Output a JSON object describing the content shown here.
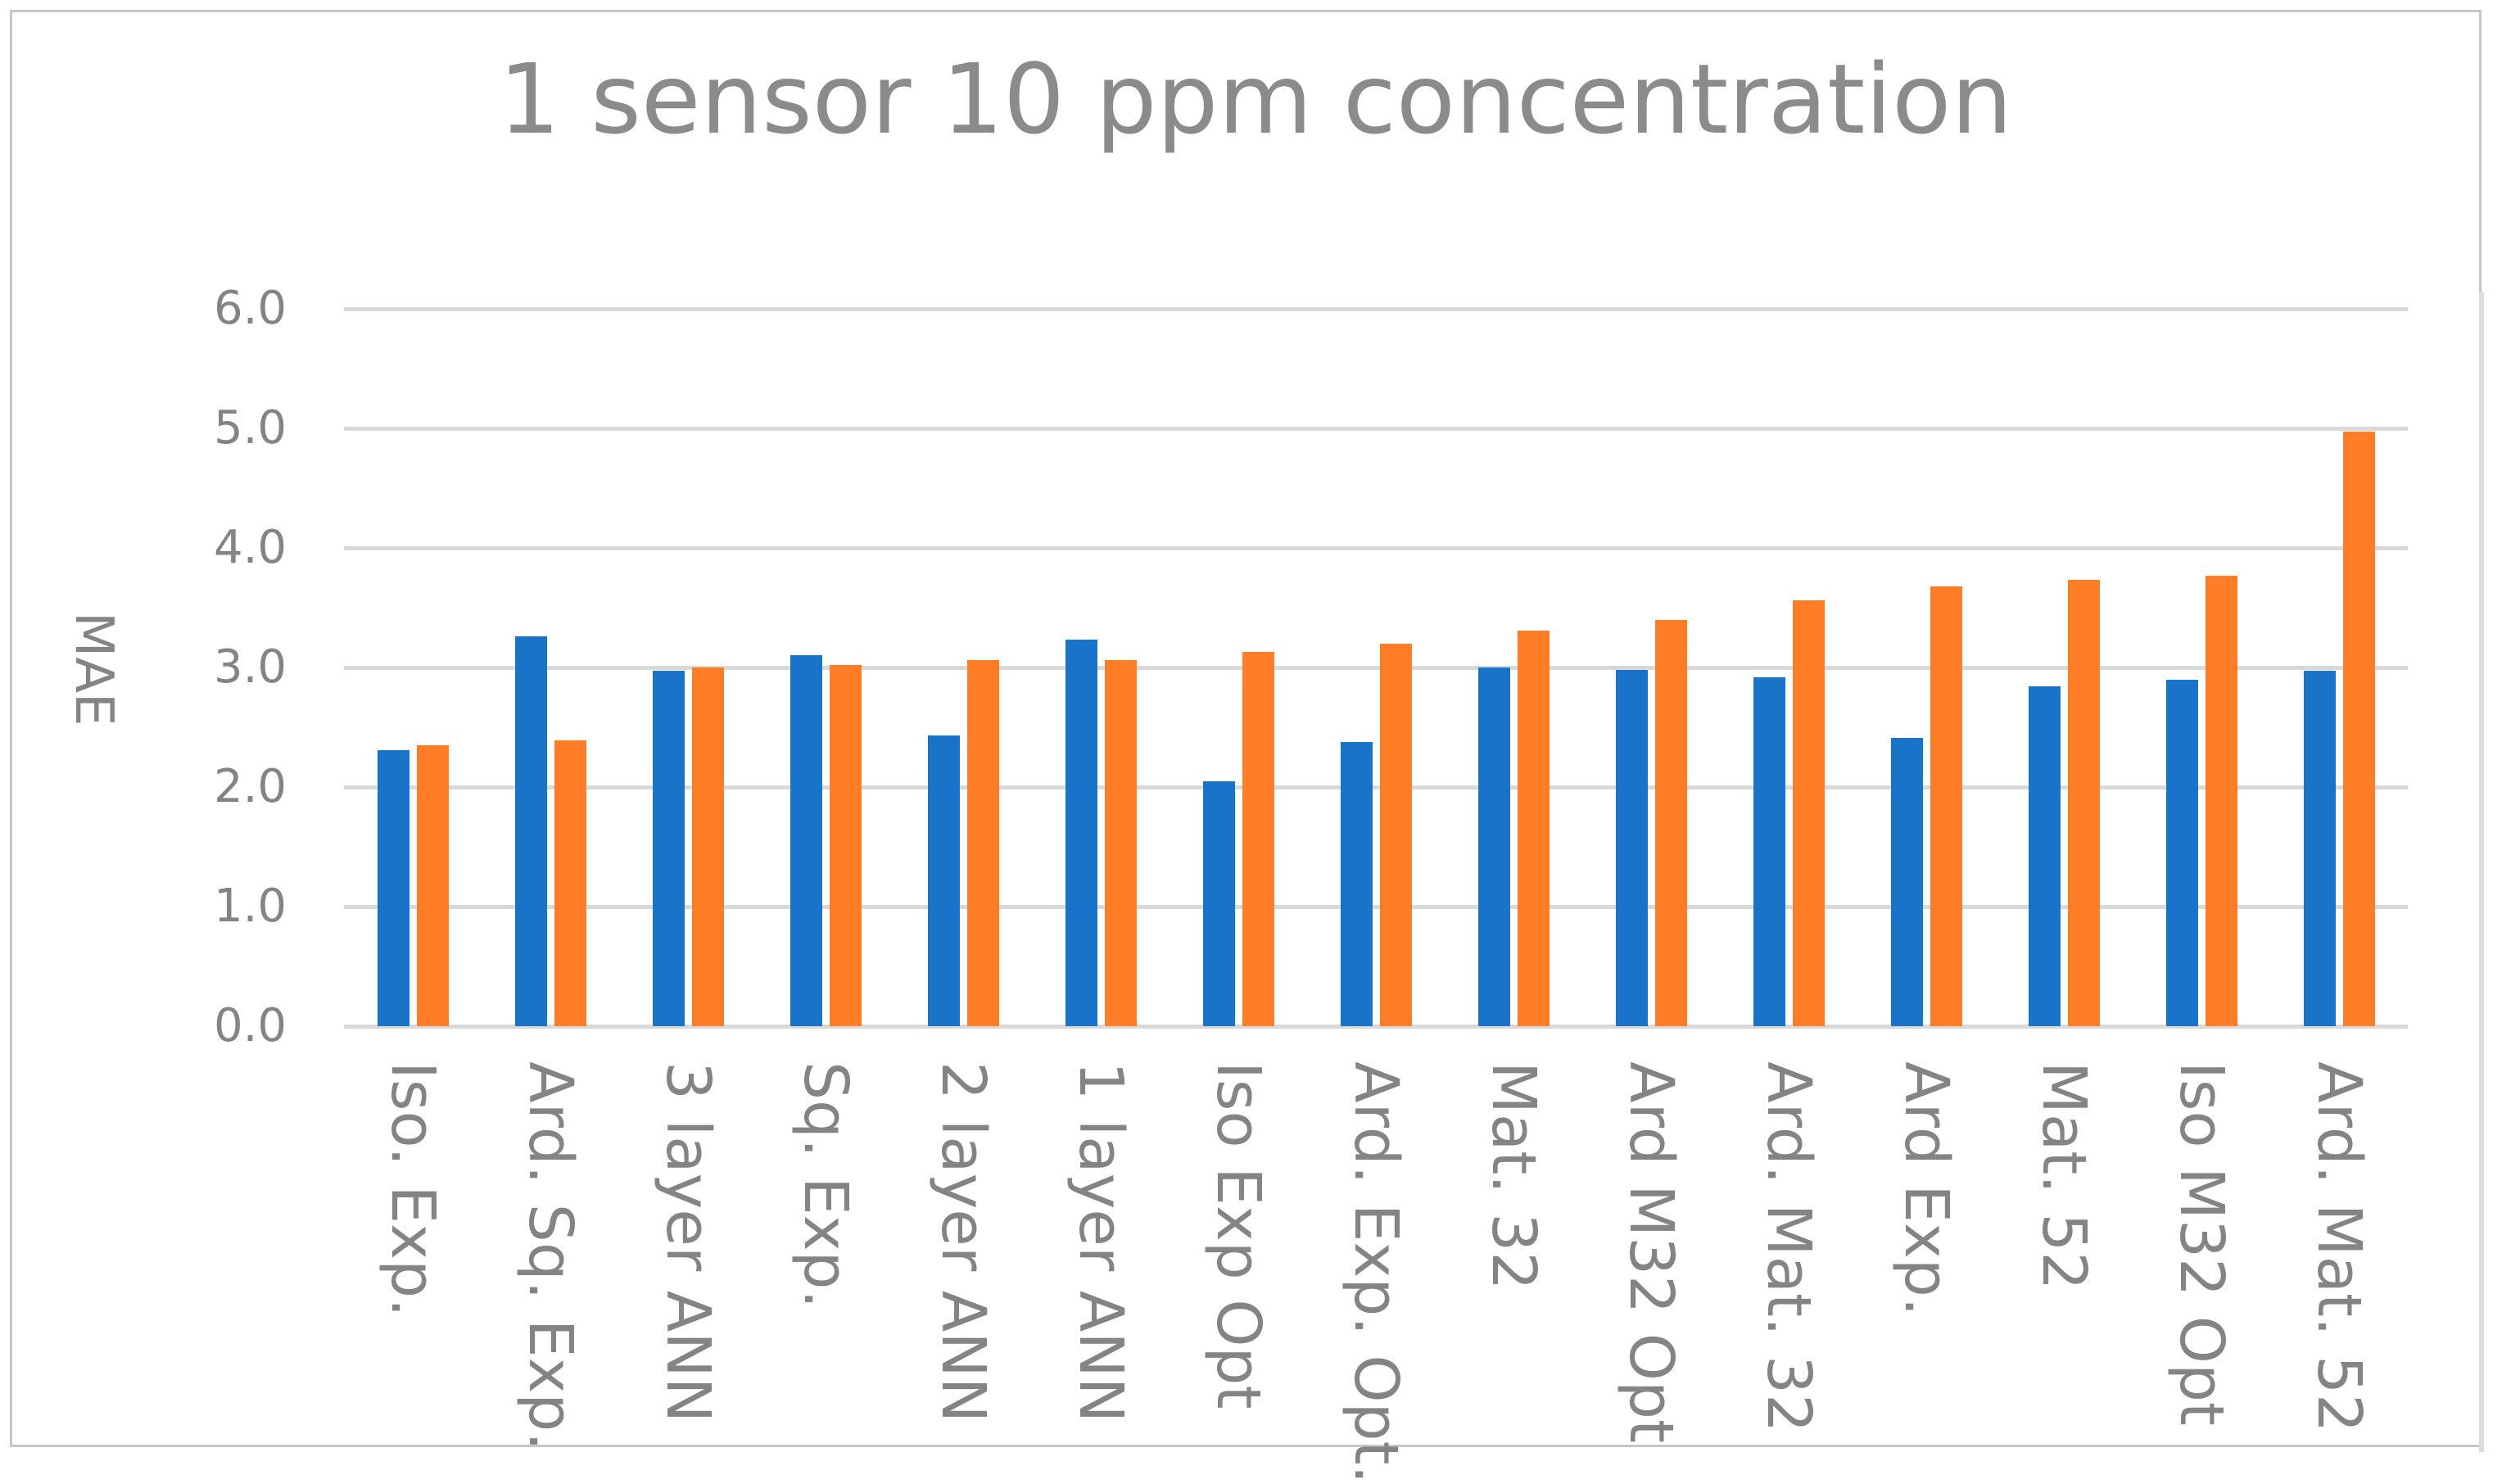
{
  "title": "1 sensor 10 ppm concentration",
  "y_axis": {
    "label": "MAE",
    "ticks": [
      "6.0",
      "5.0",
      "4.0",
      "3.0",
      "2.0",
      "1.0",
      "0.0"
    ]
  },
  "colors": {
    "series_blue": "#1973c8",
    "series_orange": "#ff7d26",
    "gridline": "#d9d9d9",
    "text_gray": "#848484",
    "frame_border": "#c6c6c6"
  },
  "chart_data": {
    "type": "bar",
    "title": "1 sensor 10 ppm concentration",
    "xlabel": "",
    "ylabel": "MAE",
    "ylim": [
      0,
      6
    ],
    "ytick_step": 1.0,
    "grid": true,
    "legend_position": "none",
    "categories": [
      "Iso. Exp.",
      "Ard. Sq. Exp.",
      "3 layer ANN",
      "Sq. Exp.",
      "2 layer ANN",
      "1 layer ANN",
      "Iso Exp Opt",
      "Ard. Exp. Opt.",
      "Mat. 32",
      "Ard M32 Opt",
      "Ard. Mat. 32",
      "Ard Exp.",
      "Mat. 52",
      "Iso M32 Opt",
      "Ard. Mat. 52"
    ],
    "series": [
      {
        "name": "blue",
        "color": "#1973c8",
        "values": [
          2.31,
          3.26,
          2.97,
          3.1,
          2.43,
          3.23,
          2.05,
          2.38,
          3.0,
          2.98,
          2.92,
          2.41,
          2.84,
          2.9,
          2.97
        ]
      },
      {
        "name": "orange",
        "color": "#ff7d26",
        "values": [
          2.35,
          2.39,
          3.0,
          3.02,
          3.06,
          3.06,
          3.13,
          3.2,
          3.31,
          3.4,
          3.56,
          3.68,
          3.73,
          3.77,
          4.97
        ]
      }
    ]
  }
}
